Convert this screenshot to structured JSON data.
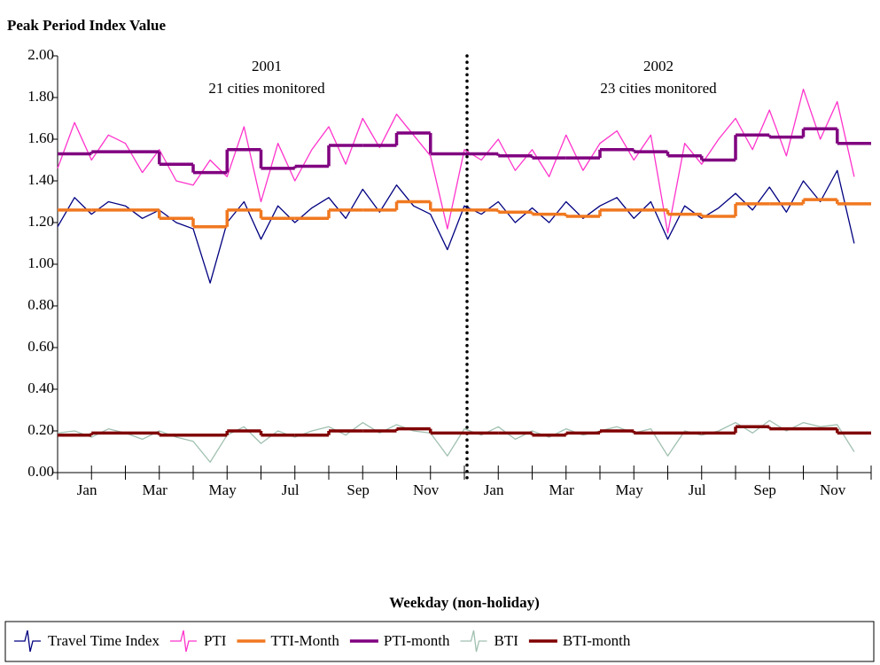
{
  "chart_data": {
    "type": "line",
    "title": "Peak Period Index Value",
    "xlabel": "Weekday (non-holiday)",
    "annotations": [
      "2001",
      "21 cities monitored",
      "2002",
      "23 cities monitored"
    ],
    "categories": [
      "Jan",
      null,
      "Mar",
      null,
      "May",
      null,
      "Jul",
      null,
      "Sep",
      null,
      "Nov",
      null,
      "Jan",
      null,
      "Mar",
      null,
      "May",
      null,
      "Jul",
      null,
      "Sep",
      null,
      "Nov",
      null
    ],
    "xlim": [
      0,
      24
    ],
    "x": [
      0,
      0.5,
      1,
      1.5,
      2,
      2.5,
      3,
      3.5,
      4,
      4.5,
      5,
      5.5,
      6,
      6.5,
      7,
      7.5,
      8,
      8.5,
      9,
      9.5,
      10,
      10.5,
      11,
      11.5,
      12,
      12.5,
      13,
      13.5,
      14,
      14.5,
      15,
      15.5,
      16,
      16.5,
      17,
      17.5,
      18,
      18.5,
      19,
      19.5,
      20,
      20.5,
      21,
      21.5,
      22,
      22.5,
      23,
      23.5
    ],
    "ylim": [
      0,
      2
    ],
    "yticks": [
      {
        "value": 0,
        "label": "0.00"
      },
      {
        "value": 0.2,
        "label": "0.20"
      },
      {
        "value": 0.4,
        "label": "0.40"
      },
      {
        "value": 0.6,
        "label": "0.60"
      },
      {
        "value": 0.8,
        "label": "0.80"
      },
      {
        "value": 1,
        "label": "1.00"
      },
      {
        "value": 1.2,
        "label": "1.20"
      },
      {
        "value": 1.4,
        "label": "1.40"
      },
      {
        "value": 1.6,
        "label": "1.60"
      },
      {
        "value": 1.8,
        "label": "1.80"
      },
      {
        "value": 2,
        "label": "2.00"
      }
    ],
    "grid": false,
    "legend": "bottom",
    "series": [
      {
        "name": "Travel Time Index",
        "color": "#000080",
        "values": [
          1.18,
          1.32,
          1.24,
          1.3,
          1.28,
          1.22,
          1.26,
          1.2,
          1.17,
          0.91,
          1.2,
          1.3,
          1.12,
          1.28,
          1.2,
          1.27,
          1.32,
          1.22,
          1.36,
          1.25,
          1.38,
          1.28,
          1.24,
          1.07,
          1.28,
          1.24,
          1.3,
          1.2,
          1.27,
          1.2,
          1.3,
          1.22,
          1.28,
          1.32,
          1.22,
          1.3,
          1.12,
          1.28,
          1.22,
          1.27,
          1.34,
          1.26,
          1.37,
          1.25,
          1.4,
          1.3,
          1.45,
          1.1
        ]
      },
      {
        "name": "PTI",
        "color": "#ff33cc",
        "values": [
          1.46,
          1.68,
          1.5,
          1.62,
          1.58,
          1.44,
          1.55,
          1.4,
          1.38,
          1.5,
          1.42,
          1.66,
          1.3,
          1.58,
          1.4,
          1.55,
          1.66,
          1.48,
          1.7,
          1.56,
          1.72,
          1.62,
          1.52,
          1.17,
          1.55,
          1.5,
          1.6,
          1.45,
          1.55,
          1.42,
          1.62,
          1.45,
          1.58,
          1.64,
          1.5,
          1.62,
          1.15,
          1.58,
          1.48,
          1.6,
          1.7,
          1.55,
          1.74,
          1.52,
          1.84,
          1.6,
          1.78,
          1.42
        ]
      },
      {
        "name": "TTI-Month",
        "color": "#f07820",
        "step": true,
        "x": [
          0,
          1,
          2,
          3,
          4,
          5,
          6,
          7,
          8,
          9,
          10,
          11,
          12,
          13,
          14,
          15,
          16,
          17,
          18,
          19,
          20,
          21,
          22,
          23
        ],
        "values": [
          1.26,
          1.26,
          1.26,
          1.22,
          1.18,
          1.26,
          1.22,
          1.22,
          1.26,
          1.26,
          1.3,
          1.26,
          1.26,
          1.25,
          1.24,
          1.23,
          1.26,
          1.26,
          1.24,
          1.23,
          1.29,
          1.29,
          1.31,
          1.29
        ]
      },
      {
        "name": "PTI-month",
        "color": "#800080",
        "step": true,
        "x": [
          0,
          1,
          2,
          3,
          4,
          5,
          6,
          7,
          8,
          9,
          10,
          11,
          12,
          13,
          14,
          15,
          16,
          17,
          18,
          19,
          20,
          21,
          22,
          23
        ],
        "values": [
          1.53,
          1.54,
          1.54,
          1.48,
          1.44,
          1.55,
          1.46,
          1.47,
          1.57,
          1.57,
          1.63,
          1.53,
          1.53,
          1.52,
          1.51,
          1.51,
          1.55,
          1.54,
          1.52,
          1.5,
          1.62,
          1.61,
          1.65,
          1.58
        ]
      },
      {
        "name": "BTI",
        "color": "#a0c0b0",
        "values": [
          0.19,
          0.2,
          0.17,
          0.21,
          0.19,
          0.16,
          0.2,
          0.17,
          0.15,
          0.05,
          0.18,
          0.22,
          0.14,
          0.2,
          0.17,
          0.2,
          0.22,
          0.18,
          0.24,
          0.19,
          0.23,
          0.2,
          0.19,
          0.08,
          0.21,
          0.18,
          0.22,
          0.16,
          0.2,
          0.17,
          0.21,
          0.18,
          0.2,
          0.22,
          0.19,
          0.21,
          0.08,
          0.2,
          0.18,
          0.2,
          0.24,
          0.19,
          0.25,
          0.2,
          0.24,
          0.22,
          0.23,
          0.1
        ]
      },
      {
        "name": "BTI-month",
        "color": "#800000",
        "step": true,
        "x": [
          0,
          1,
          2,
          3,
          4,
          5,
          6,
          7,
          8,
          9,
          10,
          11,
          12,
          13,
          14,
          15,
          16,
          17,
          18,
          19,
          20,
          21,
          22,
          23
        ],
        "values": [
          0.18,
          0.19,
          0.19,
          0.18,
          0.18,
          0.2,
          0.18,
          0.18,
          0.2,
          0.2,
          0.21,
          0.19,
          0.19,
          0.19,
          0.18,
          0.19,
          0.2,
          0.19,
          0.19,
          0.19,
          0.22,
          0.21,
          0.21,
          0.19
        ]
      }
    ]
  }
}
